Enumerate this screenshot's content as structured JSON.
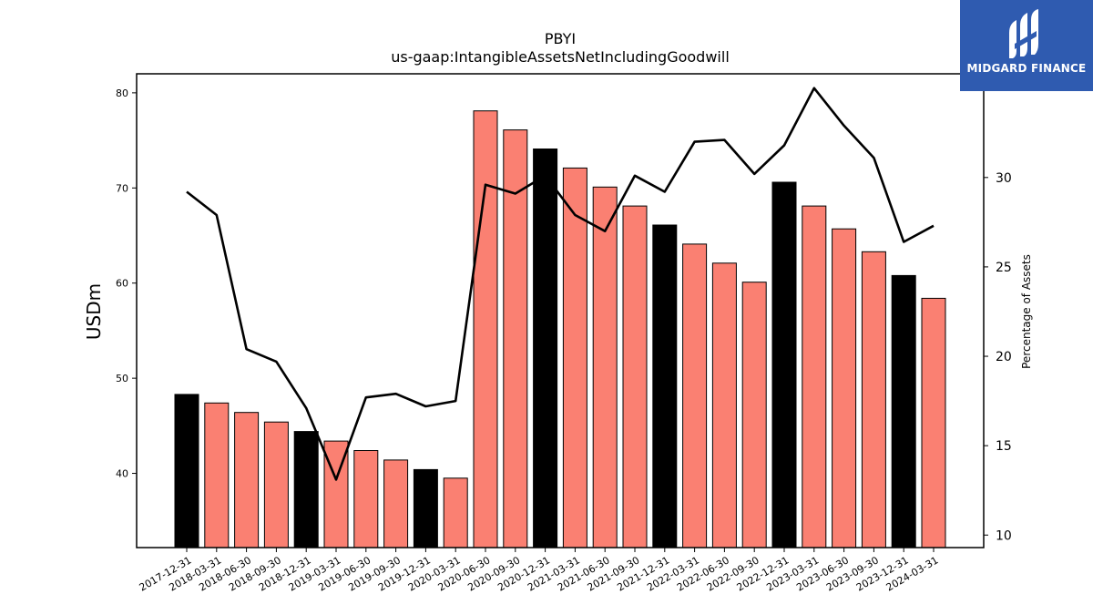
{
  "chart_data": {
    "type": "bar",
    "title": "PBYI",
    "subtitle": "us-gaap:IntangibleAssetsNetIncludingGoodwill",
    "ylabel": "USDm",
    "y2label": "Percentage of Assets",
    "ylim": [
      32.2,
      82.0
    ],
    "y2lim": [
      9.3,
      35.8
    ],
    "yticks": [
      40,
      50,
      60,
      70,
      80
    ],
    "y2ticks": [
      10,
      15,
      20,
      25,
      30
    ],
    "categories": [
      "2017-12-31",
      "2018-03-31",
      "2018-06-30",
      "2018-09-30",
      "2018-12-31",
      "2019-03-31",
      "2019-06-30",
      "2019-09-30",
      "2019-12-31",
      "2020-03-31",
      "2020-06-30",
      "2020-09-30",
      "2020-12-31",
      "2021-03-31",
      "2021-06-30",
      "2021-09-30",
      "2021-12-31",
      "2022-03-31",
      "2022-06-30",
      "2022-09-30",
      "2022-12-31",
      "2023-03-31",
      "2023-06-30",
      "2023-09-30",
      "2023-12-31",
      "2024-03-31"
    ],
    "series": [
      {
        "type": "bar",
        "axis": "left",
        "values": [
          48.3,
          47.4,
          46.4,
          45.4,
          44.4,
          43.4,
          42.4,
          41.4,
          40.4,
          39.5,
          78.1,
          76.1,
          74.1,
          72.1,
          70.1,
          68.1,
          66.1,
          64.1,
          62.1,
          60.1,
          70.6,
          68.1,
          65.7,
          63.3,
          60.8,
          58.4
        ],
        "highlight": [
          true,
          false,
          false,
          false,
          true,
          false,
          false,
          false,
          true,
          false,
          false,
          false,
          true,
          false,
          false,
          false,
          true,
          false,
          false,
          false,
          true,
          false,
          false,
          false,
          true,
          false
        ]
      },
      {
        "type": "line",
        "axis": "right",
        "values": [
          29.2,
          27.9,
          20.4,
          19.7,
          17.1,
          13.1,
          17.7,
          17.9,
          17.2,
          17.5,
          29.6,
          29.1,
          30.1,
          27.9,
          27.0,
          30.1,
          29.2,
          32.0,
          32.1,
          30.2,
          31.8,
          35.0,
          32.9,
          31.1,
          26.4,
          27.3
        ]
      }
    ],
    "colors": {
      "bar": "#fa8072",
      "highlight_bar": "#000000",
      "line": "#000000"
    }
  },
  "logo": {
    "text": "MIDGARD FINANCE",
    "icon": "midgard-logo-icon"
  }
}
